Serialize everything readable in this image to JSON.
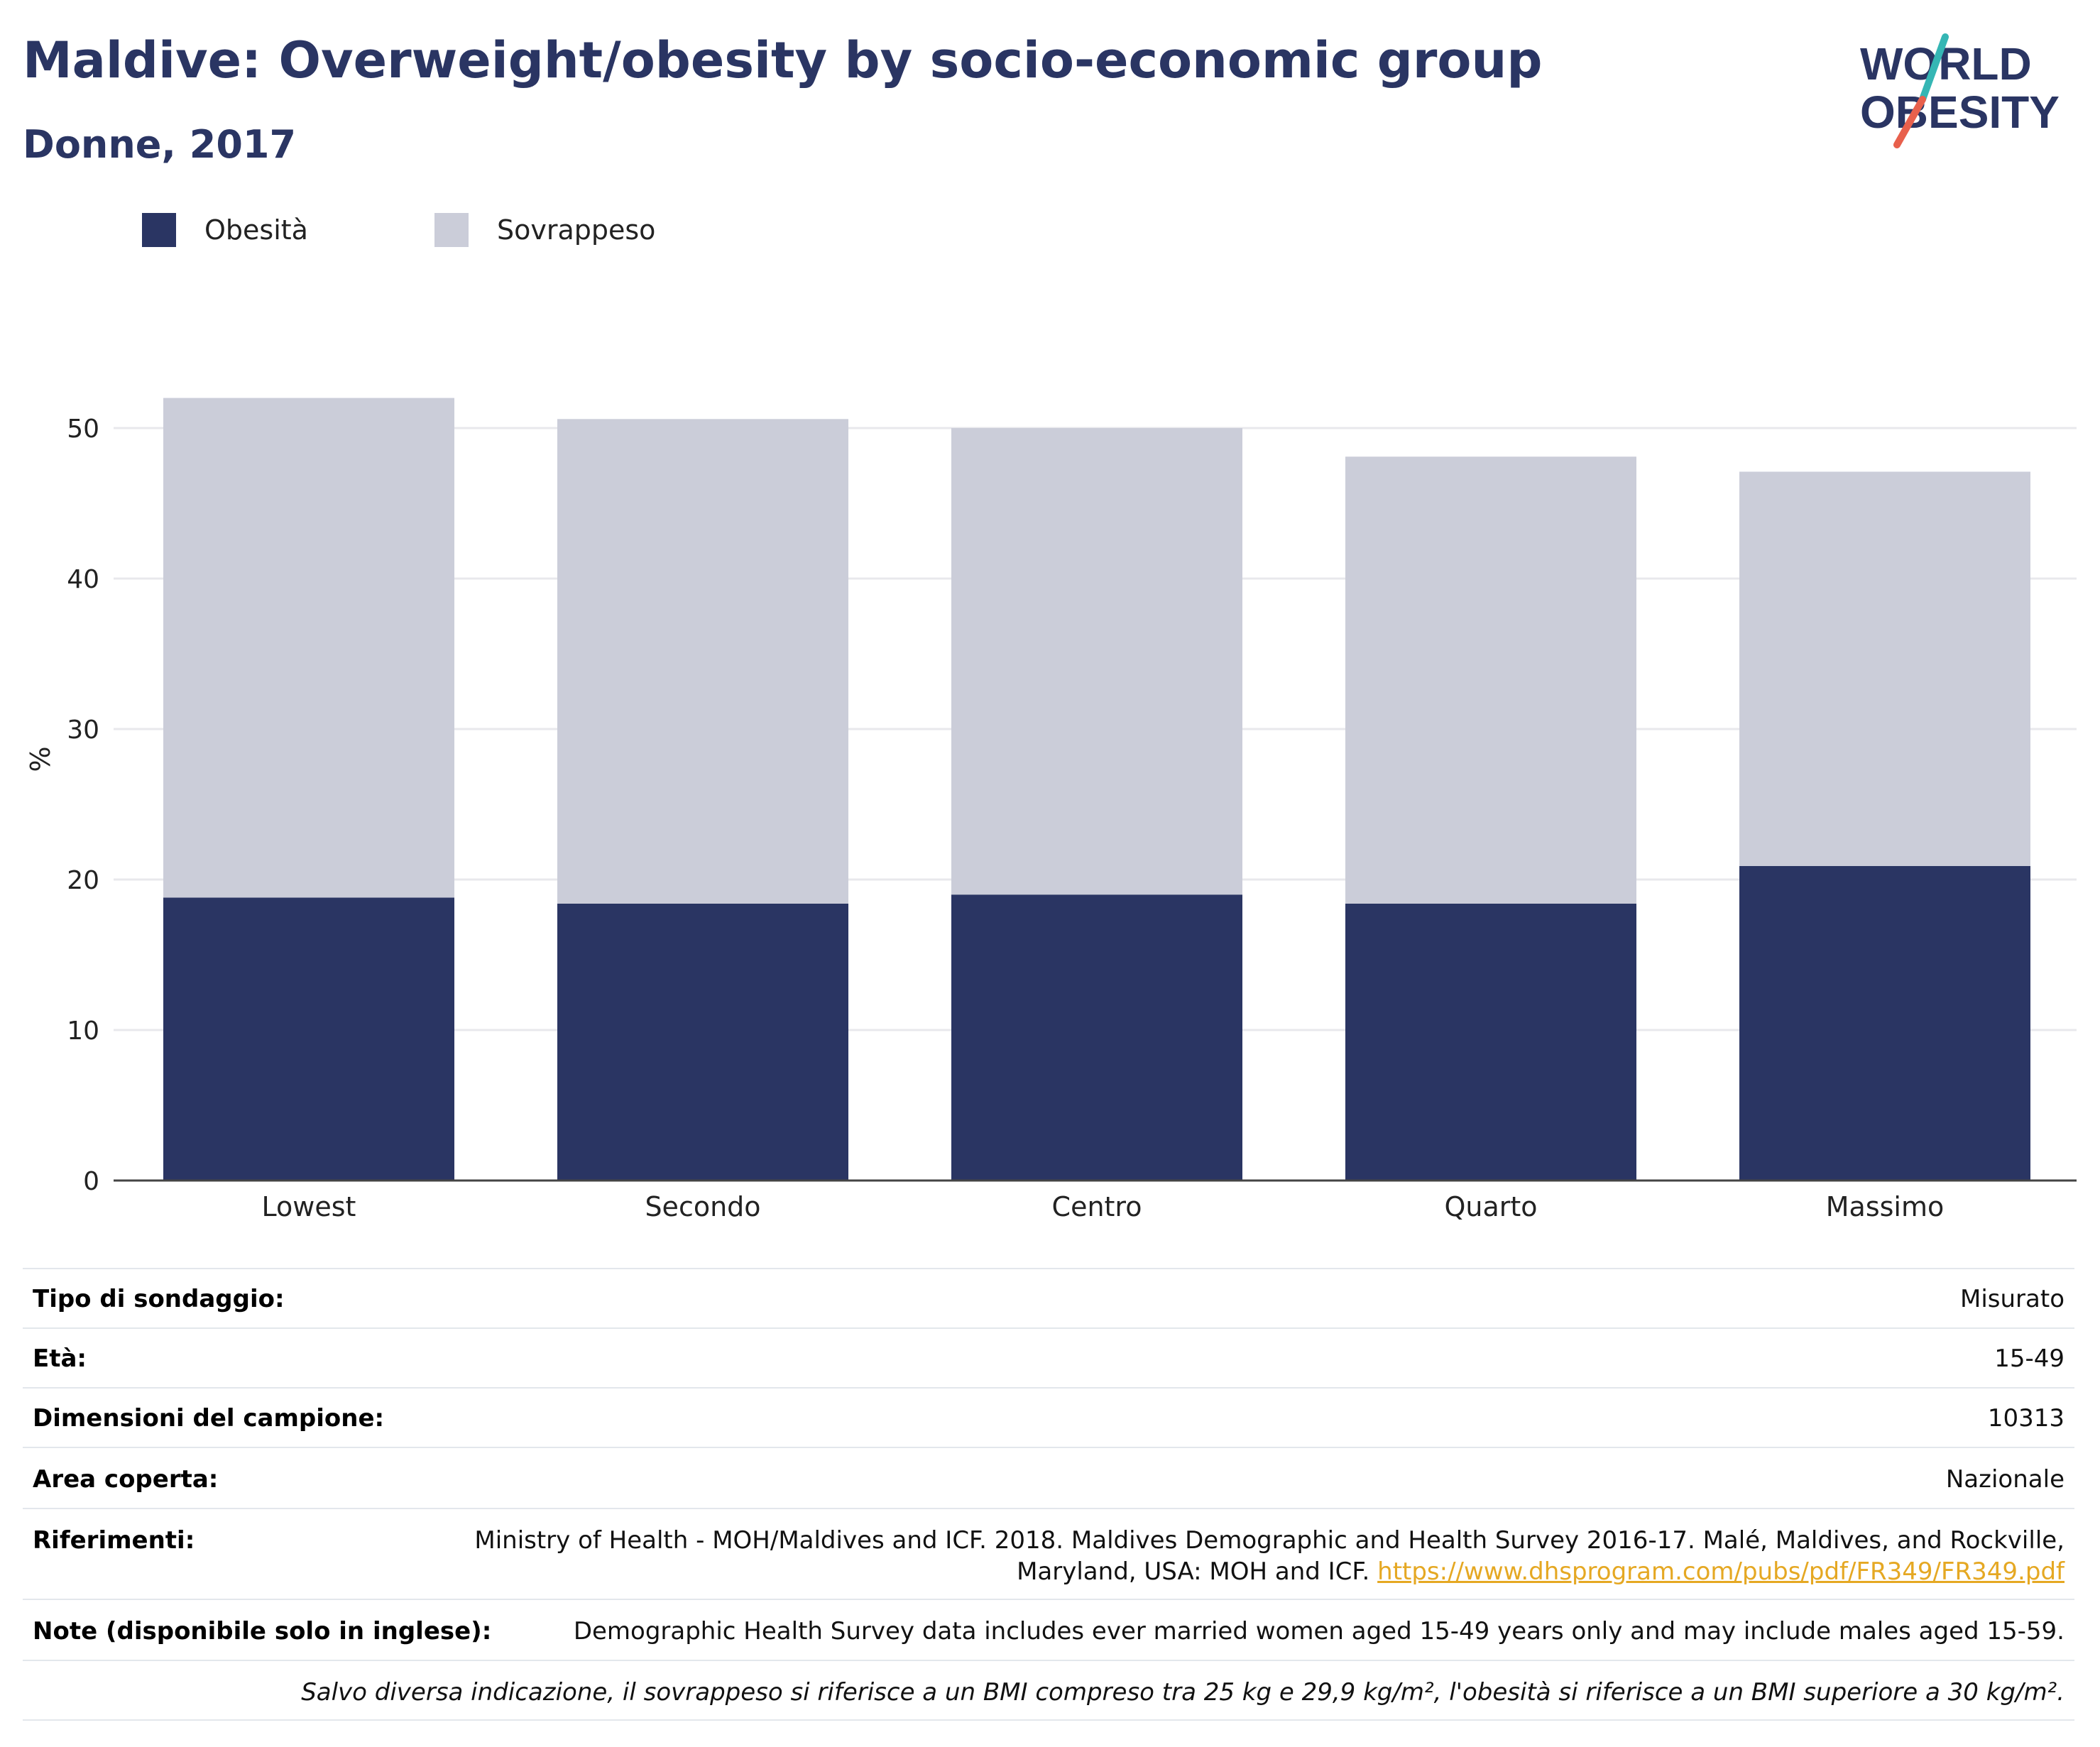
{
  "header": {
    "title": "Maldive: Overweight/obesity by socio-economic group",
    "subtitle": "Donne, 2017"
  },
  "logo": {
    "line1": "WORLD",
    "line2": "OBESITY",
    "colors": {
      "text": "#2a3563",
      "slash_red": "#e8604c",
      "slash_teal": "#35b6b4"
    }
  },
  "legend": [
    {
      "label": "Obesità",
      "color": "#2a3563"
    },
    {
      "label": "Sovrappeso",
      "color": "#cbcdd9"
    }
  ],
  "chart_data": {
    "type": "bar",
    "stacked": true,
    "categories": [
      "Lowest",
      "Secondo",
      "Centro",
      "Quarto",
      "Massimo"
    ],
    "series": [
      {
        "name": "Obesità",
        "color": "#2a3563",
        "values": [
          18.8,
          18.4,
          19.0,
          18.4,
          20.9
        ]
      },
      {
        "name": "Sovrappeso",
        "color": "#cbcdd9",
        "values": [
          33.2,
          32.2,
          31.0,
          29.7,
          26.2
        ]
      }
    ],
    "ylabel": "%",
    "xlabel": "",
    "ylim": [
      0,
      55
    ],
    "yticks": [
      0,
      10,
      20,
      30,
      40,
      50
    ],
    "grid": true
  },
  "info_table": {
    "rows": [
      {
        "label": "Tipo di sondaggio:",
        "value": "Misurato"
      },
      {
        "label": "Età:",
        "value": "15-49"
      },
      {
        "label": "Dimensioni del campione:",
        "value": "10313"
      },
      {
        "label": "Area coperta:",
        "value": "Nazionale"
      },
      {
        "label": "Riferimenti:",
        "value": "Ministry of Health - MOH/Maldives and ICF. 2018. Maldives Demographic and Health Survey 2016-17. Malé, Maldives, and Rockville,",
        "value2": "Maryland, USA: MOH and ICF. ",
        "link": "https://www.dhsprogram.com/pubs/pdf/FR349/FR349.pdf"
      },
      {
        "label": "Note (disponibile solo in inglese):",
        "value": "Demographic Health Survey data includes ever married women aged 15-49 years only and may include males aged 15-59."
      }
    ],
    "footnote": "Salvo diversa indicazione, il sovrappeso si riferisce a un BMI compreso tra 25 kg e 29,9 kg/m², l'obesità si riferisce a un BMI superiore a 30 kg/m²."
  }
}
